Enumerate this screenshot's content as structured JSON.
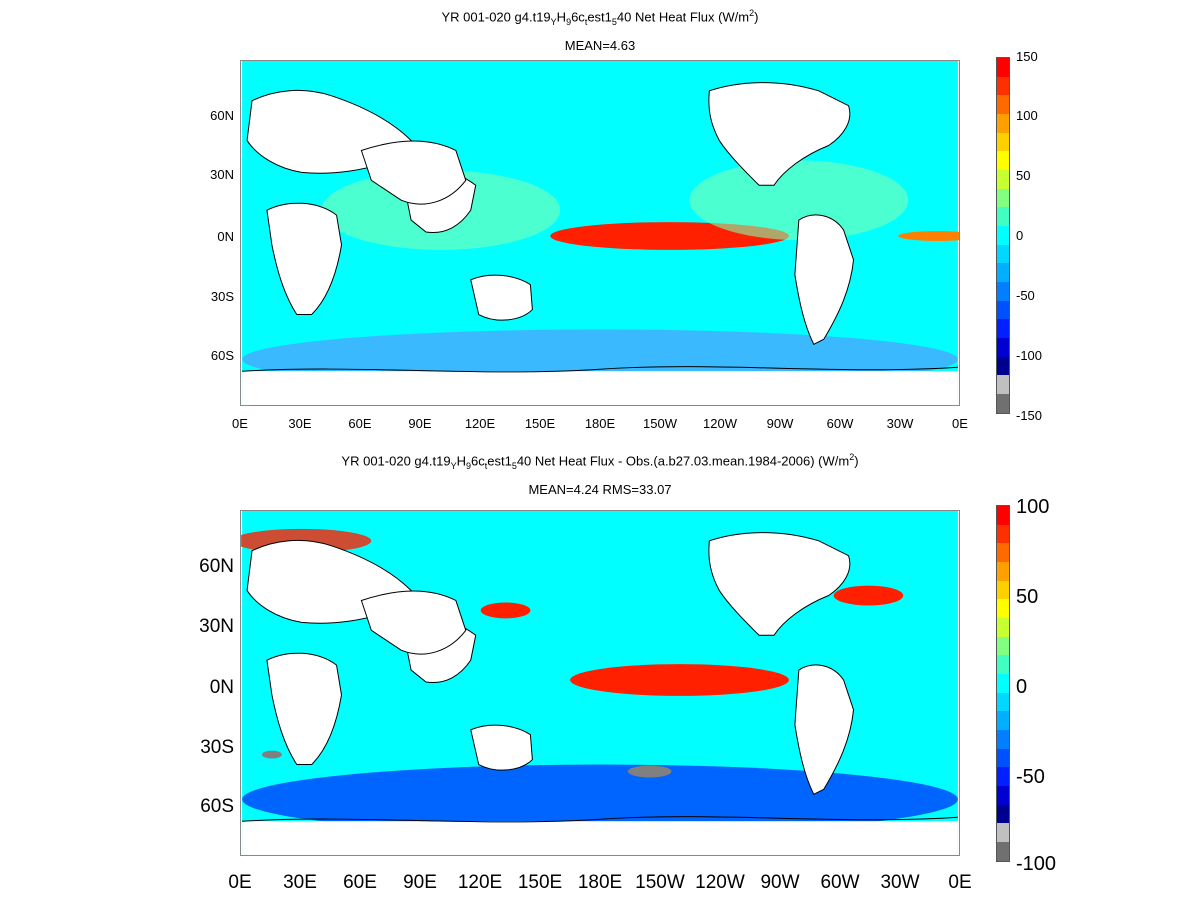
{
  "panels": [
    {
      "id": "model",
      "title_parts": [
        "YR 001-020 g4.t19",
        "Y",
        "H",
        "9",
        "6c",
        "t",
        "est1",
        "5",
        "40  Net Heat Flux (W/m",
        "2",
        ")"
      ],
      "stats": "MEAN=4.63",
      "colorbar_ticks": [
        "150",
        "100",
        "50",
        "0",
        "-50",
        "-100",
        "-150"
      ],
      "colorbar_range": [
        -150,
        150
      ]
    },
    {
      "id": "diff",
      "title_parts": [
        "YR 001-020 g4.t19",
        "Y",
        "H",
        "9",
        "6c",
        "t",
        "est1",
        "5",
        "40  Net Heat Flux - Obs.(a.b27.03.mean.1984-2006) (W/m",
        "2",
        ")"
      ],
      "stats": "MEAN=4.24 RMS=33.07",
      "colorbar_ticks": [
        "100",
        "50",
        "0",
        "-50",
        "-100"
      ],
      "colorbar_range": [
        -100,
        100
      ]
    }
  ],
  "lat_labels": [
    "60N",
    "30N",
    "0N",
    "30S",
    "60S"
  ],
  "lon_labels": [
    "0E",
    "30E",
    "60E",
    "90E",
    "120E",
    "150E",
    "180E",
    "150W",
    "120W",
    "90W",
    "60W",
    "30W",
    "0E"
  ],
  "colorbar_colors": [
    "#ff0000",
    "#ff3000",
    "#ff6a00",
    "#ffa000",
    "#ffd000",
    "#ffff00",
    "#c8ff30",
    "#80ff80",
    "#40ffc0",
    "#00ffff",
    "#00d8ff",
    "#00b0ff",
    "#0080ff",
    "#0050ff",
    "#0020ff",
    "#0000d0",
    "#000090",
    "#c0c0c0",
    "#707070"
  ],
  "colors": {
    "ocean": "#00ffff",
    "land": "#ffffff",
    "coast": "#000000",
    "hot": "#ff2000",
    "cold": "#0030ff",
    "ice": "#808080"
  }
}
